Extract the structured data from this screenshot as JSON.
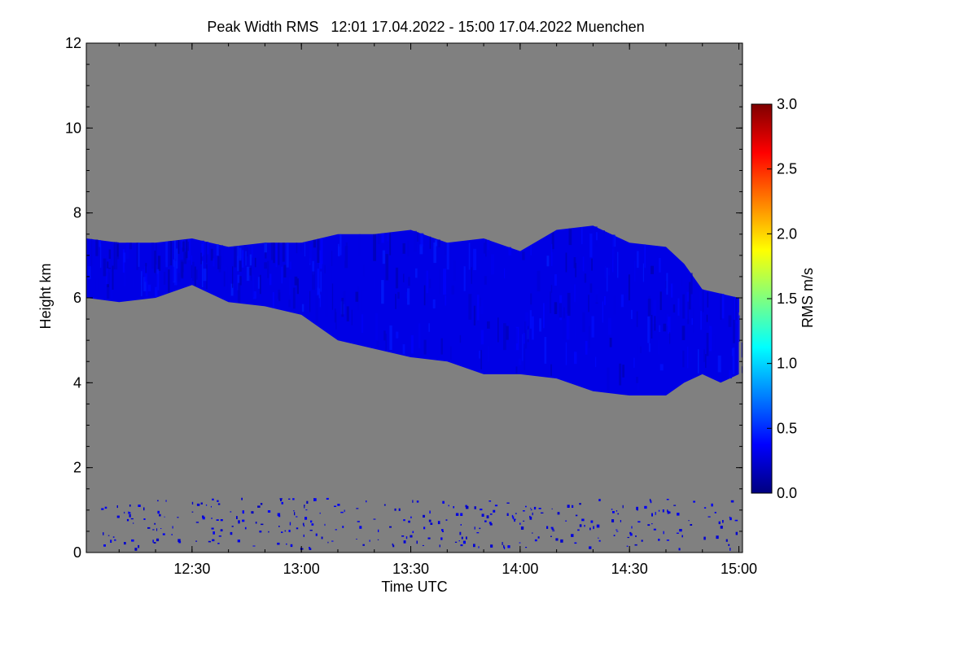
{
  "chart_data": {
    "type": "heatmap",
    "title": "Peak Width RMS   12:01 17.04.2022 - 15:00 17.04.2022 Muenchen",
    "xlabel": "Time UTC",
    "ylabel": "Height km",
    "x_range": [
      "12:01",
      "15:01"
    ],
    "x_ticks": [
      "12:30",
      "13:00",
      "13:30",
      "14:00",
      "14:30",
      "15:00"
    ],
    "y_range": [
      0,
      12
    ],
    "y_ticks": [
      "0",
      "2",
      "4",
      "6",
      "8",
      "10",
      "12"
    ],
    "background_color": "#808080",
    "colorbar": {
      "label": "RMS m/s",
      "range": [
        0.0,
        3.0
      ],
      "ticks": [
        "0.0",
        "0.5",
        "1.0",
        "1.5",
        "2.0",
        "2.5",
        "3.0"
      ],
      "colormap": "jet"
    },
    "cloud_layer": {
      "description_values": "approximate top and base heights (km) vs time",
      "times": [
        "12:01",
        "12:10",
        "12:20",
        "12:30",
        "12:40",
        "12:50",
        "13:00",
        "13:10",
        "13:20",
        "13:30",
        "13:40",
        "13:50",
        "14:00",
        "14:10",
        "14:20",
        "14:30",
        "14:40",
        "14:45",
        "14:50",
        "14:55",
        "15:00"
      ],
      "top_km": [
        7.4,
        7.3,
        7.3,
        7.4,
        7.2,
        7.3,
        7.3,
        7.5,
        7.5,
        7.6,
        7.3,
        7.4,
        7.1,
        7.6,
        7.7,
        7.3,
        7.2,
        6.8,
        6.2,
        6.1,
        6.0
      ],
      "base_km": [
        6.0,
        5.9,
        6.0,
        6.3,
        5.9,
        5.8,
        5.6,
        5.0,
        4.8,
        4.6,
        4.5,
        4.2,
        4.2,
        4.1,
        3.8,
        3.7,
        3.7,
        4.0,
        4.2,
        4.0,
        4.2
      ],
      "rms_typical": 0.3
    },
    "low_clutter": {
      "height_range_km": [
        0,
        1.3
      ],
      "rms_typical": 0.3
    }
  }
}
